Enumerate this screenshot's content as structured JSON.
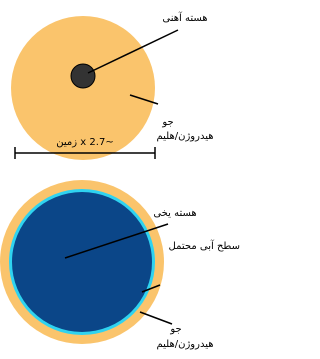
{
  "top_planet": {
    "core_label": "هسته آهنی",
    "atmosphere_label_1": "جو",
    "atmosphere_label_2": "هیدروژن/هلیم"
  },
  "scale": {
    "label": "~2.7 x زمین"
  },
  "bottom_planet": {
    "core_label": "هسته یخی",
    "surface_label": "سطح آبی محتمل",
    "atmosphere_label_1": "جو",
    "atmosphere_label_2": "هیدروژن/هلیم"
  }
}
